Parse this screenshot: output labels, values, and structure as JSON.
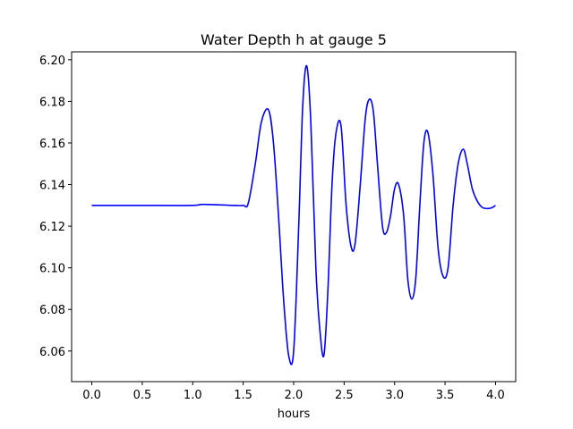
{
  "chart_data": {
    "type": "line",
    "title": "Water Depth h at gauge 5",
    "xlabel": "hours",
    "ylabel": "",
    "xlim": [
      -0.2,
      4.2
    ],
    "ylim": [
      6.0453,
      6.2038
    ],
    "grid": false,
    "x_ticks": [
      0.0,
      0.5,
      1.0,
      1.5,
      2.0,
      2.5,
      3.0,
      3.5,
      4.0
    ],
    "x_tick_labels": [
      "0.0",
      "0.5",
      "1.0",
      "1.5",
      "2.0",
      "2.5",
      "3.0",
      "3.5",
      "4.0"
    ],
    "y_ticks": [
      6.06,
      6.08,
      6.1,
      6.12,
      6.14,
      6.16,
      6.18,
      6.2
    ],
    "y_tick_labels": [
      "6.06",
      "6.08",
      "6.10",
      "6.12",
      "6.14",
      "6.16",
      "6.18",
      "6.20"
    ],
    "series": [
      {
        "color": "#0000ff",
        "x": [
          0.0,
          0.5,
          1.0,
          1.1,
          1.4,
          1.5,
          1.55,
          1.62,
          1.68,
          1.75,
          1.8,
          1.85,
          1.9,
          1.95,
          2.0,
          2.05,
          2.09,
          2.13,
          2.17,
          2.22,
          2.26,
          2.3,
          2.34,
          2.38,
          2.42,
          2.47,
          2.52,
          2.57,
          2.61,
          2.66,
          2.71,
          2.75,
          2.79,
          2.83,
          2.88,
          2.92,
          2.96,
          3.0,
          3.04,
          3.09,
          3.13,
          3.17,
          3.21,
          3.25,
          3.29,
          3.33,
          3.38,
          3.43,
          3.48,
          3.53,
          3.58,
          3.63,
          3.68,
          3.72,
          3.77,
          3.82,
          3.87,
          3.93,
          3.97,
          4.0
        ],
        "y": [
          6.13,
          6.13,
          6.13,
          6.1305,
          6.13,
          6.13,
          6.131,
          6.15,
          6.17,
          6.176,
          6.16,
          6.125,
          6.085,
          6.058,
          6.06,
          6.12,
          6.178,
          6.197,
          6.17,
          6.1,
          6.07,
          6.058,
          6.09,
          6.14,
          6.165,
          6.168,
          6.13,
          6.11,
          6.112,
          6.14,
          6.172,
          6.181,
          6.175,
          6.15,
          6.12,
          6.117,
          6.125,
          6.138,
          6.14,
          6.125,
          6.095,
          6.085,
          6.095,
          6.13,
          6.16,
          6.165,
          6.145,
          6.11,
          6.096,
          6.1,
          6.13,
          6.15,
          6.157,
          6.15,
          6.138,
          6.132,
          6.129,
          6.1285,
          6.129,
          6.13
        ]
      }
    ]
  }
}
